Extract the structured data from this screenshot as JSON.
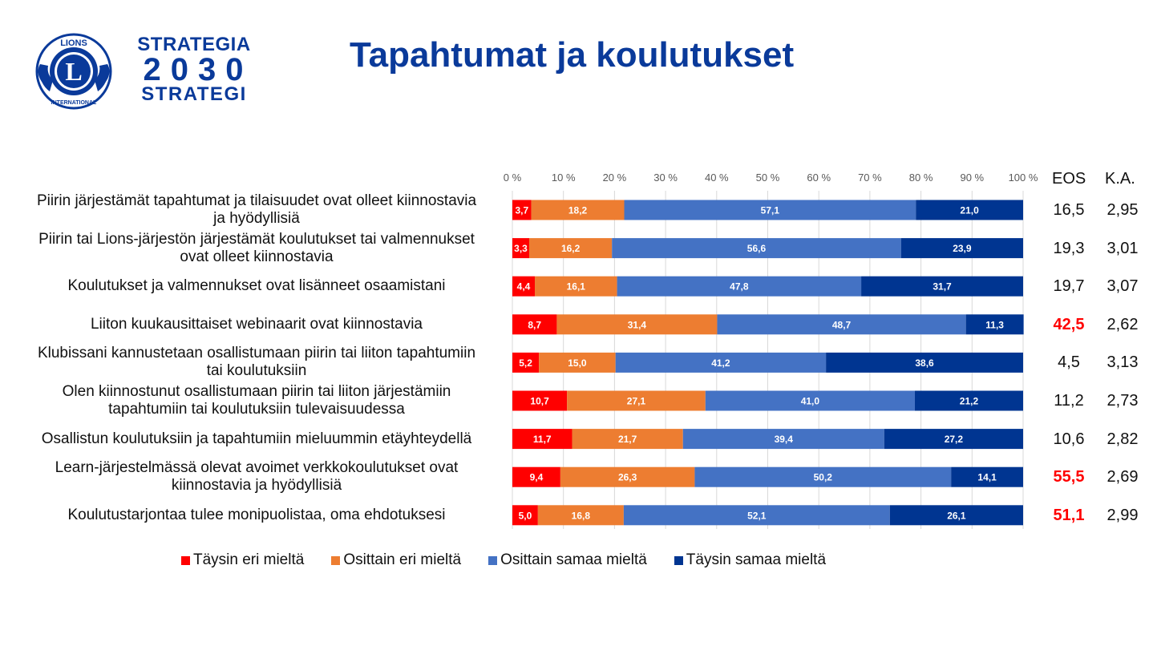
{
  "brand": {
    "logo": "lions-international-logo",
    "logo_top_text": "LIONS",
    "logo_bottom_text": "INTERNATIONAL",
    "logo_letter": "L",
    "line1": "STRATEGIA",
    "line2": "2030",
    "line3": "STRATEGI"
  },
  "title": "Tapahtumat ja koulutukset",
  "columns": {
    "eos": "EOS",
    "ka": "K.A."
  },
  "highlight_color": "#ff0000",
  "chart_data": {
    "type": "bar",
    "orientation": "horizontal",
    "stacked": "percent",
    "title": "Tapahtumat ja koulutukset",
    "xlabel": "",
    "ylabel": "",
    "xlim": [
      0,
      100
    ],
    "x_ticks": [
      "0 %",
      "10 %",
      "20 %",
      "30 %",
      "40 %",
      "50 %",
      "60 %",
      "70 %",
      "80 %",
      "90 %",
      "100 %"
    ],
    "grid": true,
    "legend_position": "bottom",
    "categories": [
      "Piirin järjestämät tapahtumat ja tilaisuudet ovat olleet kiinnostavia ja hyödyllisiä",
      "Piirin tai Lions-järjestön järjestämät koulutukset tai valmennukset ovat olleet kiinnostavia",
      "Koulutukset ja valmennukset ovat lisänneet osaamistani",
      "Liiton kuukausittaiset webinaarit ovat kiinnostavia",
      "Klubissani kannustetaan osallistumaan piirin tai liiton tapahtumiin tai koulutuksiin",
      "Olen kiinnostunut osallistumaan piirin tai liiton järjestämiin tapahtumiin tai koulutuksiin tulevaisuudessa",
      "Osallistun koulutuksiin ja tapahtumiin mieluummin etäyhteydellä",
      "Learn-järjestelmässä olevat avoimet verkkokoulutukset ovat kiinnostavia ja hyödyllisiä",
      "Koulutustarjontaa tulee monipuolistaa, oma ehdotuksesi"
    ],
    "series": [
      {
        "name": "Täysin eri mieltä",
        "color": "#ff0000",
        "values": [
          3.7,
          3.3,
          4.4,
          8.7,
          5.2,
          10.7,
          11.7,
          9.4,
          5.0
        ],
        "labels": [
          "3,7",
          "3,3",
          "4,4",
          "8,7",
          "5,2",
          "10,7",
          "11,7",
          "9,4",
          "5,0"
        ]
      },
      {
        "name": "Osittain eri mieltä",
        "color": "#ed7d31",
        "values": [
          18.2,
          16.2,
          16.1,
          31.4,
          15.0,
          27.1,
          21.7,
          26.3,
          16.8
        ],
        "labels": [
          "18,2",
          "16,2",
          "16,1",
          "31,4",
          "15,0",
          "27,1",
          "21,7",
          "26,3",
          "16,8"
        ]
      },
      {
        "name": "Osittain samaa mieltä",
        "color": "#4472c4",
        "values": [
          57.1,
          56.6,
          47.8,
          48.7,
          41.2,
          41.0,
          39.4,
          50.2,
          52.1
        ],
        "labels": [
          "57,1",
          "56,6",
          "47,8",
          "48,7",
          "41,2",
          "41,0",
          "39,4",
          "50,2",
          "52,1"
        ]
      },
      {
        "name": "Täysin samaa mieltä",
        "color": "#003591",
        "values": [
          21.0,
          23.9,
          31.7,
          11.3,
          38.6,
          21.2,
          27.2,
          14.1,
          26.1
        ],
        "labels": [
          "21,0",
          "23,9",
          "31,7",
          "11,3",
          "38,6",
          "21,2",
          "27,2",
          "14,1",
          "26,1"
        ]
      }
    ],
    "extra_columns": {
      "EOS": [
        "16,5",
        "19,3",
        "19,7",
        "42,5",
        "4,5",
        "11,2",
        "10,6",
        "55,5",
        "51,1"
      ],
      "EOS_highlighted": [
        false,
        false,
        false,
        true,
        false,
        false,
        false,
        true,
        true
      ],
      "K.A.": [
        "2,95",
        "3,01",
        "3,07",
        "2,62",
        "3,13",
        "2,73",
        "2,82",
        "2,69",
        "2,99"
      ]
    }
  },
  "row_labels": [
    [
      "Piirin järjestämät tapahtumat ja tilaisuudet ovat olleet kiinnostavia",
      "ja hyödyllisiä"
    ],
    [
      "Piirin tai Lions-järjestön järjestämät koulutukset tai valmennukset",
      "ovat olleet kiinnostavia"
    ],
    [
      "Koulutukset ja valmennukset ovat lisänneet osaamistani"
    ],
    [
      "Liiton kuukausittaiset webinaarit ovat kiinnostavia"
    ],
    [
      "Klubissani kannustetaan osallistumaan piirin tai liiton tapahtumiin",
      "tai koulutuksiin"
    ],
    [
      "Olen kiinnostunut osallistumaan piirin tai liiton järjestämiin",
      "tapahtumiin tai koulutuksiin tulevaisuudessa"
    ],
    [
      "Osallistun koulutuksiin ja tapahtumiin mieluummin etäyhteydellä"
    ],
    [
      "Learn-järjestelmässä olevat avoimet verkkokoulutukset ovat",
      "kiinnostavia ja hyödyllisiä"
    ],
    [
      "Koulutustarjontaa tulee monipuolistaa, oma ehdotuksesi"
    ]
  ]
}
